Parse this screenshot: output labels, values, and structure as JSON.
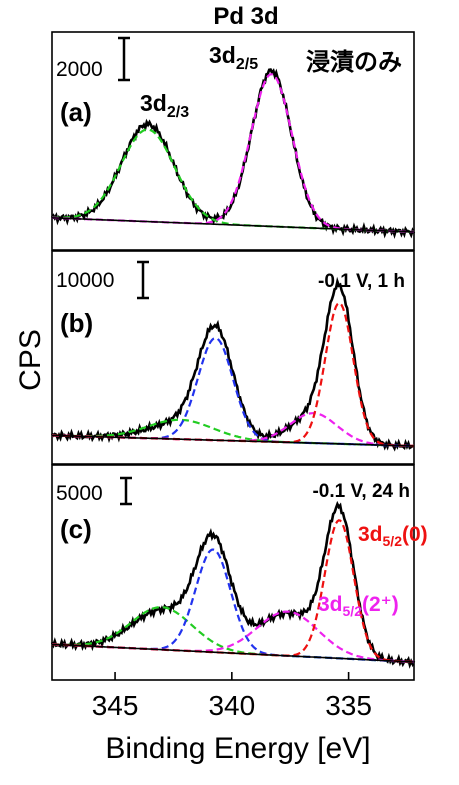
{
  "chart_data": {
    "type": "line",
    "title": "Pd 3d",
    "xlabel": "Binding Energy [eV]",
    "ylabel": "CPS",
    "xlim": [
      347.7,
      332.2
    ],
    "x_reversed": true,
    "xticks": [
      "345",
      "340",
      "335"
    ],
    "xtick_values": [
      345,
      340,
      335
    ],
    "panels": [
      {
        "label": "(a)",
        "condition": "浸漬のみ",
        "scale_bar": "2000",
        "peak_labels": [
          {
            "base": "3d",
            "sub": "2/3",
            "x": 343.5
          },
          {
            "base": "3d",
            "sub": "2/5",
            "x": 338.3
          }
        ],
        "series": [
          {
            "color": "#000000",
            "style": "solid",
            "peaks": [
              [
                343.6,
                0.55,
                1.1
              ],
              [
                338.3,
                0.88,
                0.85
              ]
            ],
            "baseline": [
              0.08,
              0.0
            ]
          },
          {
            "color": "#22cc22",
            "style": "dashed",
            "peaks": [
              [
                343.6,
                0.52,
                1.15
              ]
            ],
            "baseline": [
              0.08,
              0.0
            ]
          },
          {
            "color": "#ee22ee",
            "style": "dashed",
            "peaks": [
              [
                338.3,
                0.86,
                0.88
              ]
            ],
            "baseline": [
              0.08,
              0.0
            ]
          },
          {
            "color": "#000000",
            "style": "solid",
            "role": "background",
            "peaks": [],
            "baseline": [
              0.08,
              0.0
            ]
          }
        ]
      },
      {
        "label": "(b)",
        "condition": "-0.1 V, 1 h",
        "scale_bar": "10000",
        "series": [
          {
            "color": "#000000",
            "style": "solid",
            "peaks": [
              [
                342.2,
                0.09,
                1.4
              ],
              [
                340.7,
                0.6,
                0.75
              ],
              [
                336.5,
                0.15,
                1.0
              ],
              [
                335.4,
                0.82,
                0.6
              ]
            ],
            "baseline": [
              0.06,
              0.0
            ]
          },
          {
            "color": "#22cc22",
            "style": "dashed",
            "peaks": [
              [
                342.2,
                0.11,
                1.4
              ]
            ],
            "baseline": [
              0.06,
              0.0
            ]
          },
          {
            "color": "#2233ee",
            "style": "dashed",
            "peaks": [
              [
                340.7,
                0.58,
                0.75
              ]
            ],
            "baseline": [
              0.06,
              0.0
            ]
          },
          {
            "color": "#ee22ee",
            "style": "dashed",
            "peaks": [
              [
                336.5,
                0.17,
                1.0
              ]
            ],
            "baseline": [
              0.06,
              0.0
            ]
          },
          {
            "color": "#ee1111",
            "style": "dashed",
            "peaks": [
              [
                335.4,
                0.8,
                0.6
              ]
            ],
            "baseline": [
              0.06,
              0.0
            ]
          },
          {
            "color": "#000000",
            "style": "solid",
            "role": "background",
            "peaks": [],
            "baseline": [
              0.06,
              0.0
            ]
          }
        ]
      },
      {
        "label": "(c)",
        "condition": "-0.1 V, 24 h",
        "scale_bar": "5000",
        "component_labels": [
          {
            "base": "3d",
            "sub": "5/2",
            "suffix": "(0)",
            "color": "#ee1111"
          },
          {
            "base": "3d",
            "sub": "5/2",
            "suffix": "(2⁺)",
            "color": "#ee22ee"
          }
        ],
        "series": [
          {
            "color": "#000000",
            "style": "solid",
            "peaks": [
              [
                343.0,
                0.22,
                1.3
              ],
              [
                340.8,
                0.6,
                0.75
              ],
              [
                337.6,
                0.24,
                1.3
              ],
              [
                335.4,
                0.8,
                0.62
              ]
            ],
            "baseline": [
              0.1,
              0.0
            ]
          },
          {
            "color": "#22cc22",
            "style": "dashed",
            "peaks": [
              [
                343.0,
                0.24,
                1.3
              ]
            ],
            "baseline": [
              0.1,
              0.0
            ]
          },
          {
            "color": "#2233ee",
            "style": "dashed",
            "peaks": [
              [
                340.8,
                0.58,
                0.75
              ]
            ],
            "baseline": [
              0.1,
              0.0
            ]
          },
          {
            "color": "#ee22ee",
            "style": "dashed",
            "peaks": [
              [
                337.6,
                0.25,
                1.3
              ]
            ],
            "baseline": [
              0.1,
              0.0
            ]
          },
          {
            "color": "#ee1111",
            "style": "dashed",
            "peaks": [
              [
                335.4,
                0.78,
                0.62
              ]
            ],
            "baseline": [
              0.1,
              0.0
            ]
          },
          {
            "color": "#000000",
            "style": "solid",
            "role": "background",
            "peaks": [],
            "baseline": [
              0.1,
              0.0
            ]
          }
        ]
      }
    ]
  }
}
